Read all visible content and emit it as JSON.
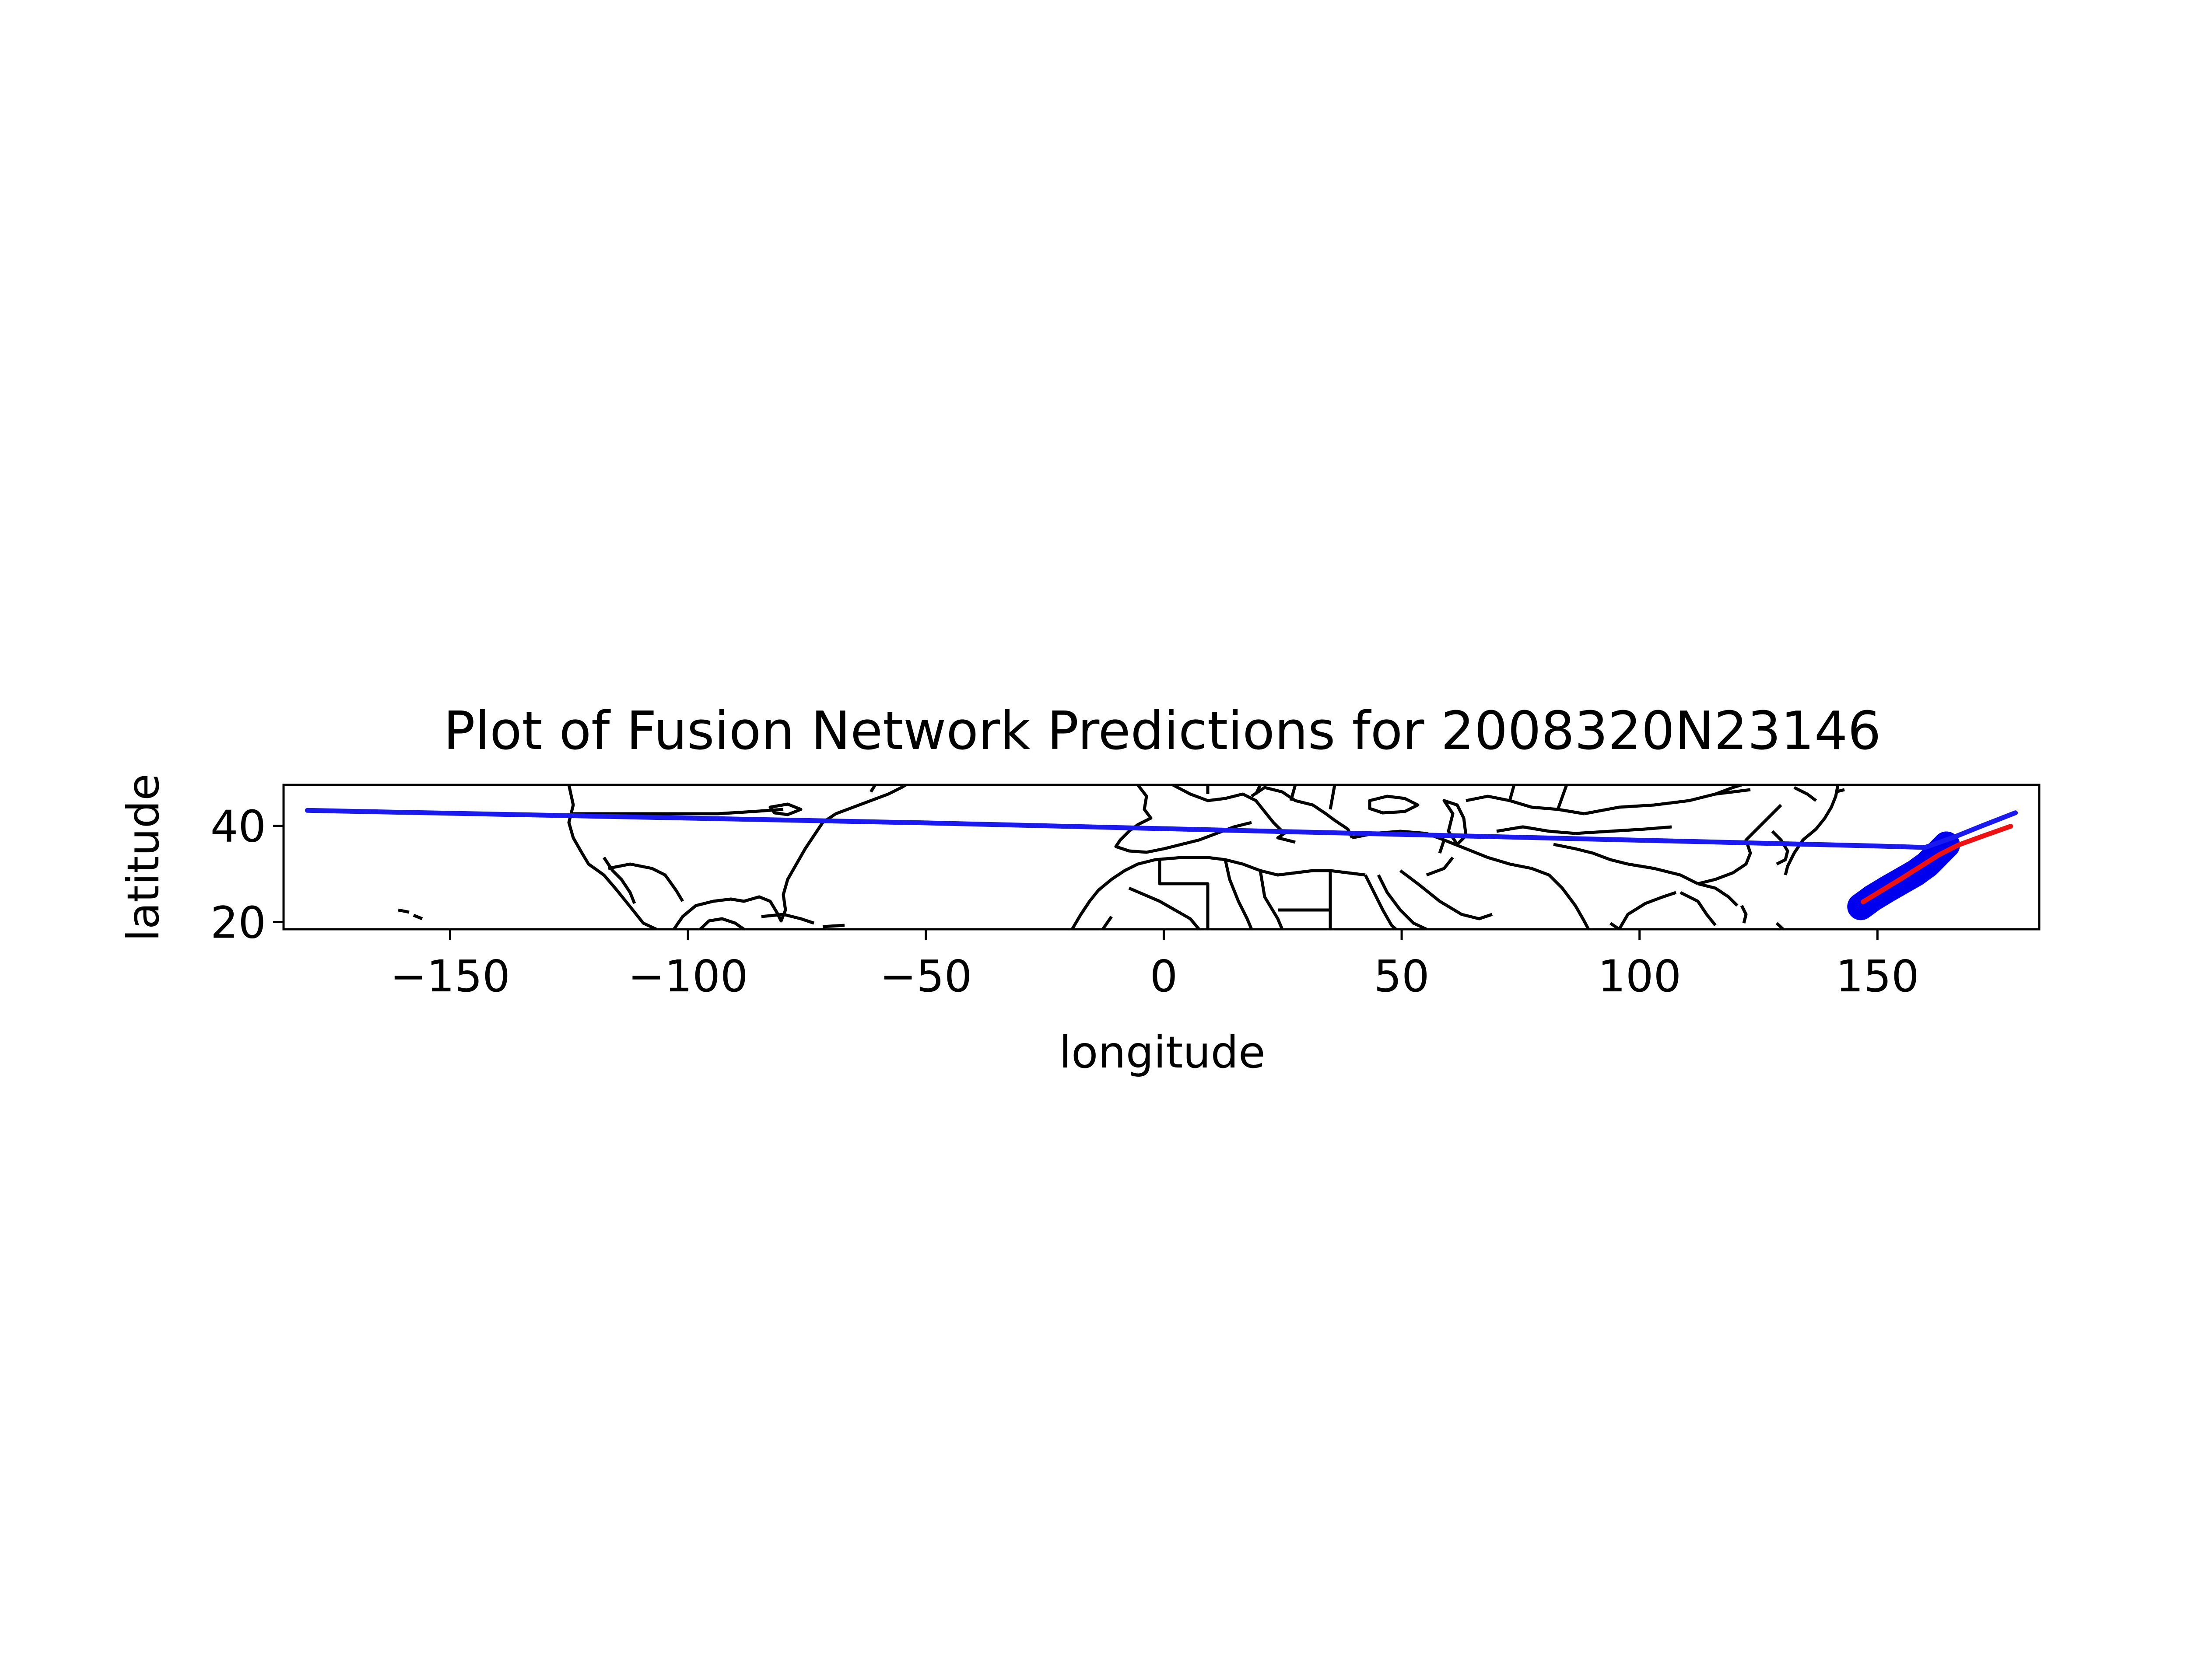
{
  "chart_data": {
    "type": "line",
    "title": "Plot of Fusion Network Predictions for 2008320N23146",
    "xlabel": "longitude",
    "ylabel": "latitude",
    "xlim": [
      -185,
      184
    ],
    "ylim": [
      18.5,
      48.5
    ],
    "x_ticks": [
      -150,
      -100,
      -50,
      0,
      50,
      100,
      150
    ],
    "x_tick_labels": [
      "−150",
      "−100",
      "−50",
      "0",
      "50",
      "100",
      "150"
    ],
    "y_ticks": [
      20,
      40
    ],
    "y_tick_labels": [
      "20",
      "40"
    ],
    "grid": false,
    "legend": null,
    "basemap": "world coastlines and country borders",
    "series": [
      {
        "style": "thick-line",
        "color": "#0000ee",
        "x": [
          146.5,
          149,
          152,
          155,
          158,
          160.5,
          162.5,
          164.5
        ],
        "y": [
          23.2,
          25.0,
          26.8,
          28.5,
          30.2,
          32.0,
          34.0,
          36.0
        ]
      },
      {
        "style": "line",
        "color": "#1a1aee",
        "x": [
          -180,
          -150,
          -100,
          -50,
          0,
          50,
          100,
          150,
          160
        ],
        "y": [
          43.2,
          42.6,
          41.6,
          40.6,
          39.4,
          38.2,
          37.0,
          35.8,
          35.5
        ]
      },
      {
        "style": "line",
        "color": "#1a1aee",
        "x": [
          160,
          166,
          172,
          179
        ],
        "y": [
          35.5,
          37.6,
          40.0,
          42.7
        ]
      },
      {
        "style": "line",
        "color": "#ee1111",
        "x": [
          147,
          151,
          155,
          159,
          163,
          167,
          172,
          178
        ],
        "y": [
          24.2,
          26.6,
          29.0,
          31.5,
          34.0,
          36.0,
          37.8,
          39.9
        ]
      }
    ]
  }
}
